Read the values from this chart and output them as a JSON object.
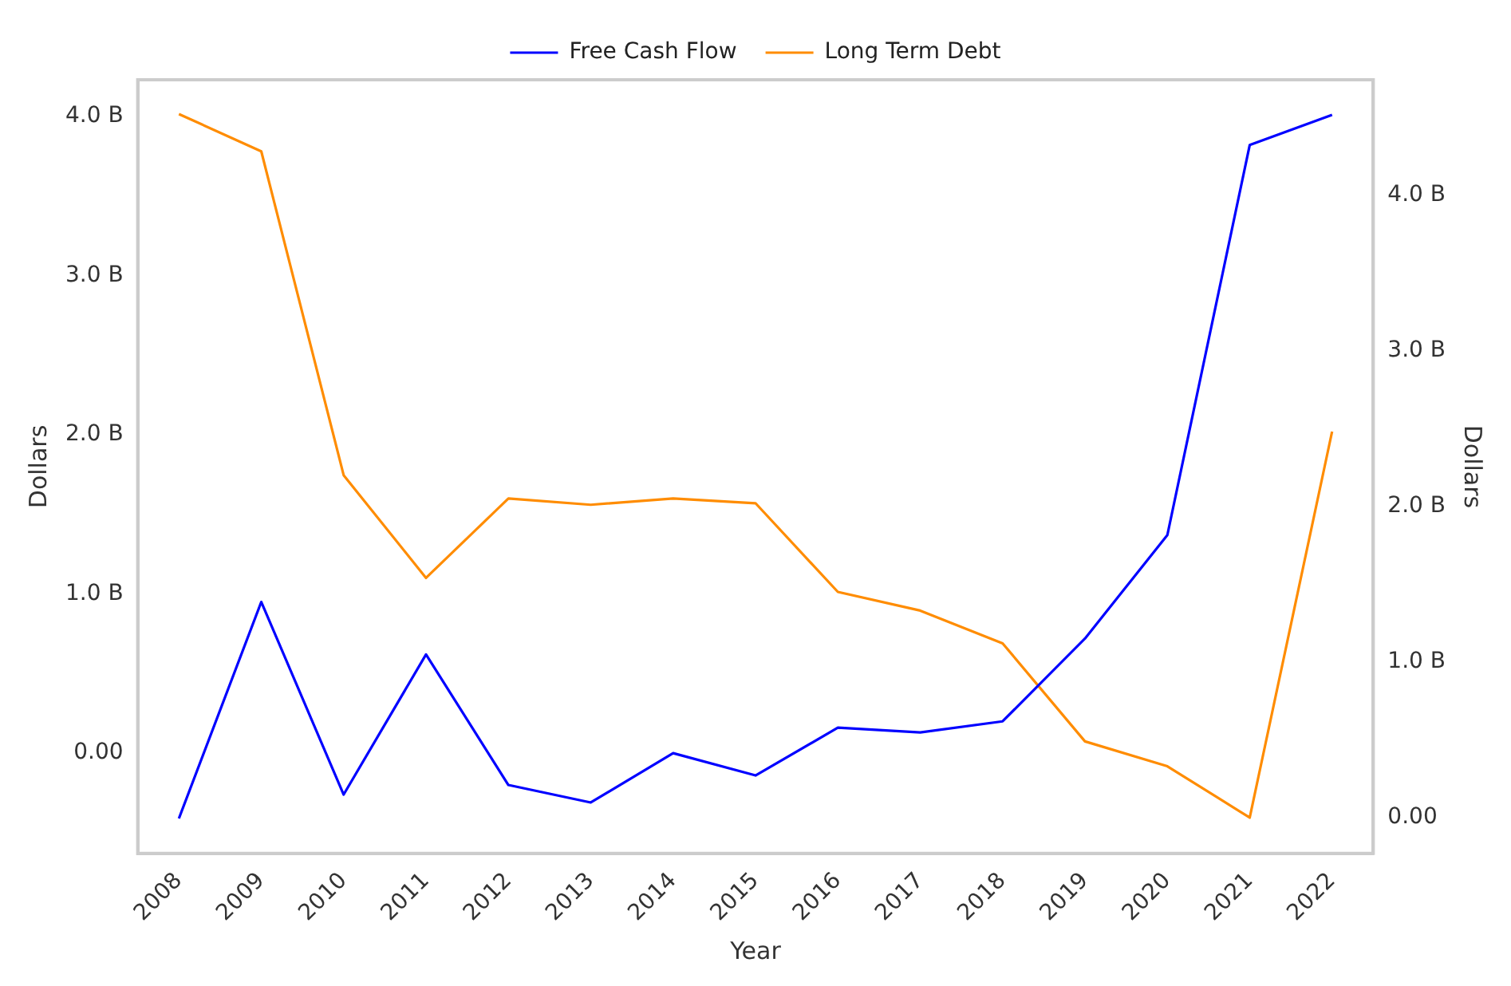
{
  "chart_data": {
    "type": "line",
    "xlabel": "Year",
    "ylabel": "Dollars",
    "y2label": "Dollars",
    "categories": [
      "2008",
      "2009",
      "2010",
      "2011",
      "2012",
      "2013",
      "2014",
      "2015",
      "2016",
      "2017",
      "2018",
      "2019",
      "2020",
      "2021",
      "2022"
    ],
    "series": [
      {
        "name": "Free Cash Flow",
        "color": "#0000ff",
        "values": [
          -0.41,
          0.95,
          -0.26,
          0.62,
          -0.2,
          -0.31,
          0.0,
          -0.14,
          0.16,
          0.13,
          0.2,
          0.72,
          1.37,
          3.82,
          4.01
        ]
      },
      {
        "name": "Long Term Debt",
        "color": "#ff8c00",
        "axis": "y2",
        "values": [
          4.52,
          4.28,
          2.2,
          1.54,
          2.05,
          2.01,
          2.05,
          2.02,
          1.45,
          1.33,
          1.12,
          0.49,
          0.33,
          0.0,
          2.48
        ]
      }
    ],
    "ylim": [
      -0.63,
      4.23
    ],
    "yticks": [
      {
        "value": 0,
        "label": "0.00"
      },
      {
        "value": 1,
        "label": "1.0 B"
      },
      {
        "value": 2,
        "label": "2.0 B"
      },
      {
        "value": 3,
        "label": "3.0 B"
      },
      {
        "value": 4,
        "label": "4.0 B"
      }
    ],
    "y2lim": [
      -0.23,
      4.74
    ],
    "y2ticks": [
      {
        "value": 0,
        "label": "0.00"
      },
      {
        "value": 1,
        "label": "1.0 B"
      },
      {
        "value": 2,
        "label": "2.0 B"
      },
      {
        "value": 3,
        "label": "3.0 B"
      },
      {
        "value": 4,
        "label": "4.0 B"
      }
    ],
    "grid": false,
    "legend": "top",
    "marker": "none",
    "line_style": "solid"
  }
}
